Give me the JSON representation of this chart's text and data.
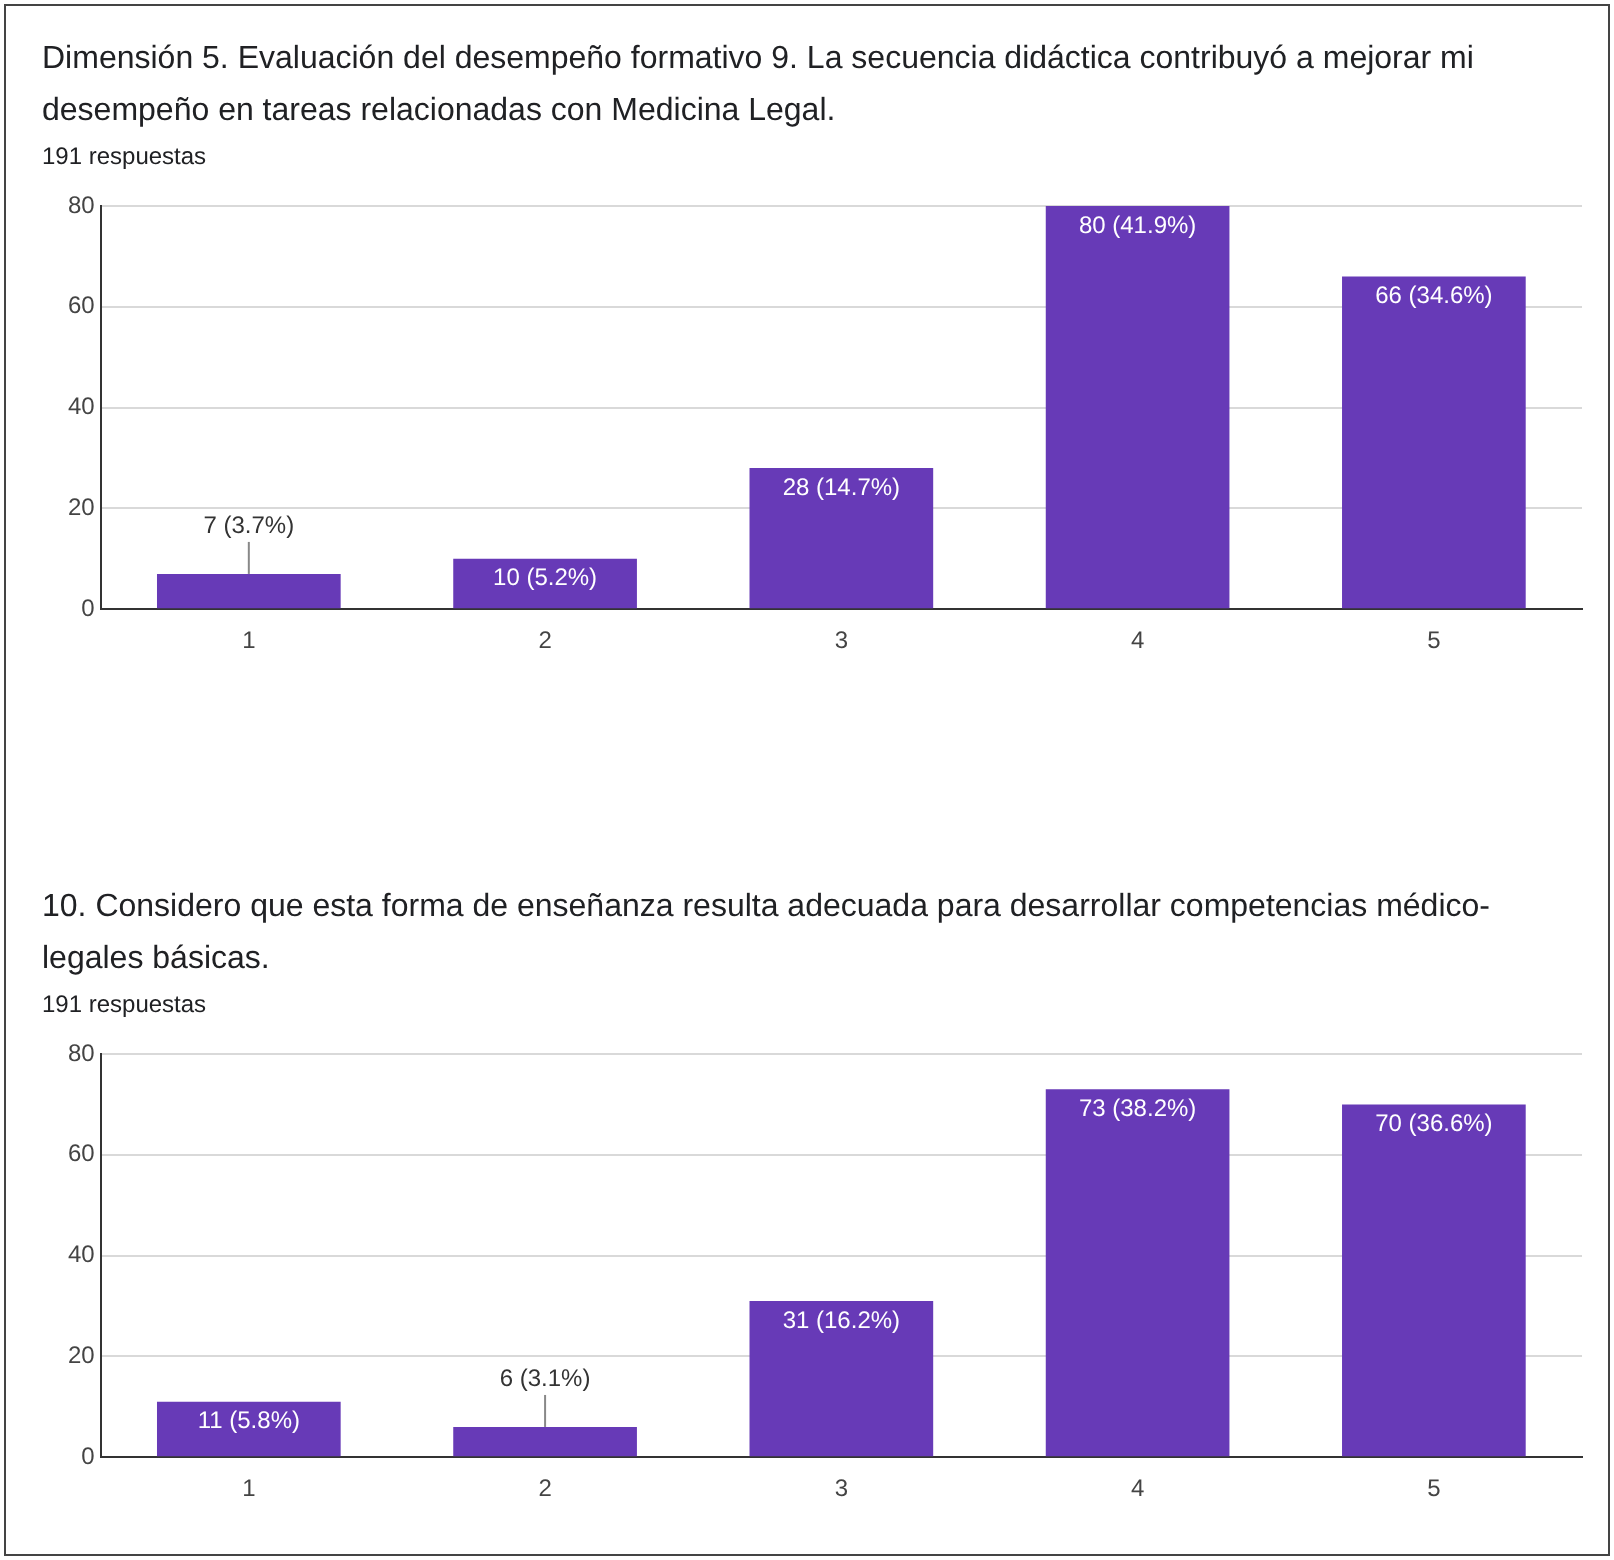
{
  "chart_data": [
    {
      "type": "bar",
      "title": "Dimensión 5. Evaluación del desempeño formativo  9. La secuencia didáctica contribuyó a mejorar mi desempeño en tareas relacionadas con Medicina Legal.",
      "subtitle": "191 respuestas",
      "categories": [
        "1",
        "2",
        "3",
        "4",
        "5"
      ],
      "values": [
        7,
        10,
        28,
        80,
        66
      ],
      "color": "#673ab7",
      "value_labels": [
        "7 (3.7%)",
        "10 (5.2%)",
        "28 (14.7%)",
        "80 (41.9%)",
        "66 (34.6%)"
      ],
      "ylim": [
        0,
        80
      ],
      "yticks": [
        0,
        20,
        40,
        60,
        80
      ],
      "grid": "y",
      "legend": false
    },
    {
      "type": "bar",
      "title": "10. Considero que esta forma de enseñanza resulta adecuada para desarrollar competencias médico-legales básicas.",
      "subtitle": "191 respuestas",
      "categories": [
        "1",
        "2",
        "3",
        "4",
        "5"
      ],
      "values": [
        11,
        6,
        31,
        73,
        70
      ],
      "color": "#673ab7",
      "value_labels": [
        "11 (5.8%)",
        "6 (3.1%)",
        "31 (16.2%)",
        "73 (38.2%)",
        "70 (36.6%)"
      ],
      "ylim": [
        0,
        80
      ],
      "yticks": [
        0,
        20,
        40,
        60,
        80
      ],
      "grid": "y",
      "legend": false
    }
  ]
}
